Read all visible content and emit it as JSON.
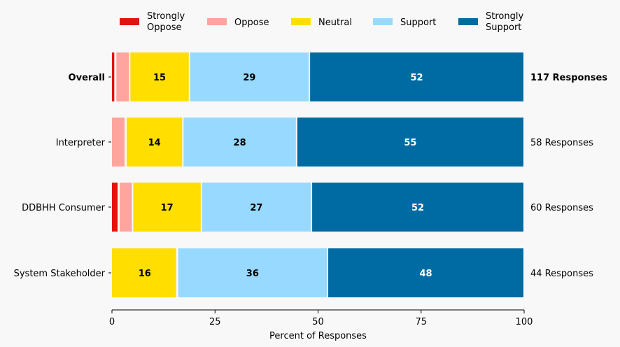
{
  "chart_data": {
    "type": "bar",
    "orientation": "horizontal",
    "stacked": true,
    "title": "",
    "xlabel": "Percent of Responses",
    "ylabel": "",
    "xlim": [
      0,
      100
    ],
    "xticks": [
      0,
      25,
      50,
      75,
      100
    ],
    "xtick_labels": [
      "0",
      "25",
      "50",
      "75",
      "100"
    ],
    "grid": false,
    "legend_position": "top",
    "categories": [
      "Overall",
      "Interpreter",
      "DDBHH Consumer",
      "System Stakeholder"
    ],
    "category_bold": [
      true,
      false,
      false,
      false
    ],
    "responses": [
      "117 Responses",
      "58 Responses",
      "60 Responses",
      "44 Responses"
    ],
    "series": [
      {
        "name": "Strongly\nOppose",
        "legend_lines": [
          "Strongly",
          "Oppose"
        ],
        "color": "#e3120b",
        "label_color": "#000000",
        "values": [
          0.9,
          0,
          1.7,
          0
        ],
        "labels": [
          "",
          "",
          "",
          ""
        ]
      },
      {
        "name": "Oppose",
        "legend_lines": [
          "Oppose"
        ],
        "color": "#ffa59e",
        "label_color": "#000000",
        "values": [
          3.4,
          3.4,
          3.3,
          0
        ],
        "labels": [
          "",
          "",
          "",
          ""
        ]
      },
      {
        "name": "Neutral",
        "legend_lines": [
          "Neutral"
        ],
        "color": "#ffde00",
        "label_color": "#000000",
        "values": [
          14.5,
          13.8,
          16.7,
          15.9
        ],
        "labels": [
          "15",
          "14",
          "17",
          "16"
        ]
      },
      {
        "name": "Support",
        "legend_lines": [
          "Support"
        ],
        "color": "#98daff",
        "label_color": "#000000",
        "values": [
          29.1,
          27.6,
          26.7,
          36.4
        ],
        "labels": [
          "29",
          "28",
          "27",
          "36"
        ]
      },
      {
        "name": "Strongly\nSupport",
        "legend_lines": [
          "Strongly",
          "Support"
        ],
        "color": "#006ba2",
        "label_color": "#ffffff",
        "values": [
          52.1,
          55.2,
          51.6,
          47.7
        ],
        "labels": [
          "52",
          "55",
          "52",
          "48"
        ]
      }
    ]
  }
}
